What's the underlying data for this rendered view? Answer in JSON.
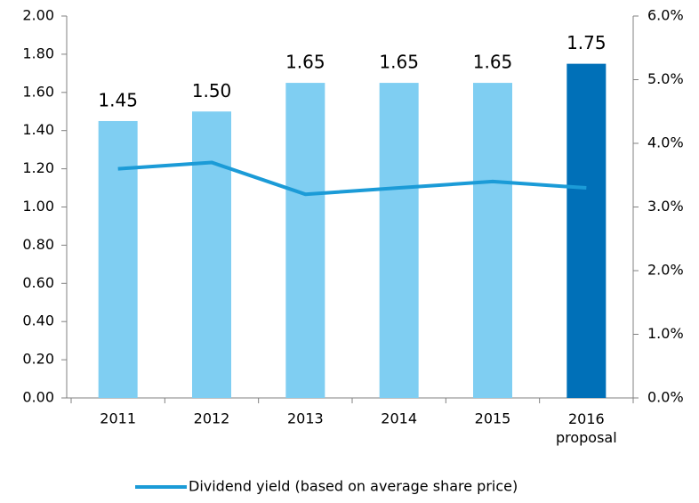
{
  "chart_data": {
    "type": "bar_line",
    "categories": [
      "2011",
      "2012",
      "2013",
      "2014",
      "2015",
      "2016 proposal"
    ],
    "series": [
      {
        "type": "bar",
        "colors": [
          "#7fcef2",
          "#7fcef2",
          "#7fcef2",
          "#7fcef2",
          "#7fcef2",
          "#0070b8"
        ],
        "values": [
          1.45,
          1.5,
          1.65,
          1.65,
          1.65,
          1.75
        ],
        "value_labels": [
          "1.45",
          "1.50",
          "1.65",
          "1.65",
          "1.65",
          "1.75"
        ]
      },
      {
        "type": "line",
        "name": "Dividend yield (based on average share price)",
        "color": "#1b9bd7",
        "axis": "y2",
        "values": [
          3.6,
          3.7,
          3.2,
          3.3,
          3.4,
          3.3
        ]
      }
    ],
    "ylim": [
      0,
      2
    ],
    "yticks": [
      {
        "value": 0,
        "label": "0.00"
      },
      {
        "value": 0.2,
        "label": "0.20"
      },
      {
        "value": 0.4,
        "label": "0.40"
      },
      {
        "value": 0.6,
        "label": "0.60"
      },
      {
        "value": 0.8,
        "label": "0.80"
      },
      {
        "value": 1,
        "label": "1.00"
      },
      {
        "value": 1.2,
        "label": "1.20"
      },
      {
        "value": 1.4,
        "label": "1.40"
      },
      {
        "value": 1.6,
        "label": "1.60"
      },
      {
        "value": 1.8,
        "label": "1.80"
      },
      {
        "value": 2,
        "label": "2.00"
      }
    ],
    "y2lim": [
      0,
      6
    ],
    "y2ticks": [
      {
        "value": 0,
        "label": "0.0%"
      },
      {
        "value": 1,
        "label": "1.0%"
      },
      {
        "value": 2,
        "label": "2.0%"
      },
      {
        "value": 3,
        "label": "3.0%"
      },
      {
        "value": 4,
        "label": "4.0%"
      },
      {
        "value": 5,
        "label": "5.0%"
      },
      {
        "value": 6,
        "label": "6.0%"
      }
    ],
    "legend": "bottom"
  }
}
